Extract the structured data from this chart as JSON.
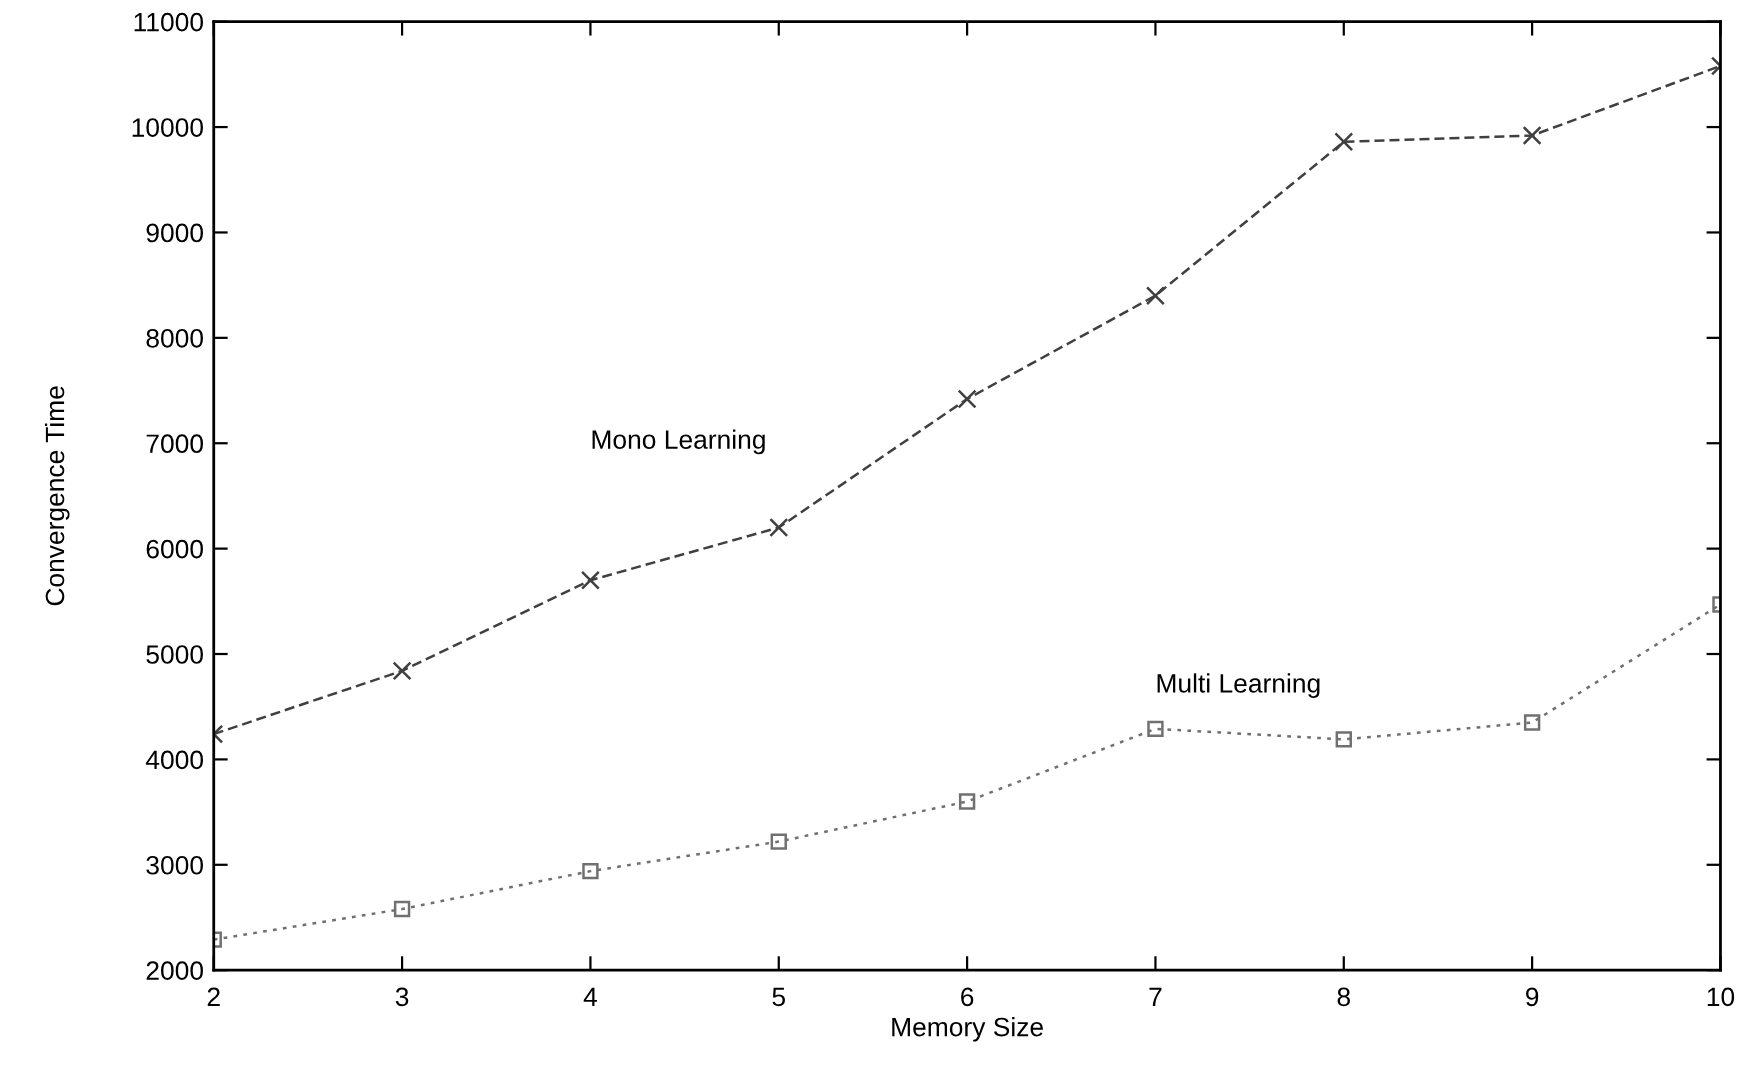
{
  "chart_data": {
    "type": "line",
    "xlabel": "Memory Size",
    "ylabel": "Convergence Time",
    "x": [
      2,
      3,
      4,
      5,
      6,
      7,
      8,
      9,
      10
    ],
    "series": [
      {
        "name": "Mono Learning",
        "color": "#404040",
        "marker": "cross",
        "line_style": "dashed",
        "values": [
          4240,
          4840,
          5700,
          6200,
          7420,
          8400,
          9860,
          9920,
          10580
        ]
      },
      {
        "name": "Multi Learning",
        "color": "#707070",
        "marker": "square",
        "line_style": "dotted",
        "values": [
          2290,
          2580,
          2940,
          3220,
          3600,
          4290,
          4190,
          4350,
          5470
        ]
      }
    ],
    "xlim": [
      2,
      10
    ],
    "xticks": [
      2,
      3,
      4,
      5,
      6,
      7,
      8,
      9,
      10
    ],
    "ylim": [
      2000,
      11000
    ],
    "yticks": [
      2000,
      3000,
      4000,
      5000,
      6000,
      7000,
      8000,
      9000,
      10000,
      11000
    ],
    "grid": false,
    "legend": false
  }
}
